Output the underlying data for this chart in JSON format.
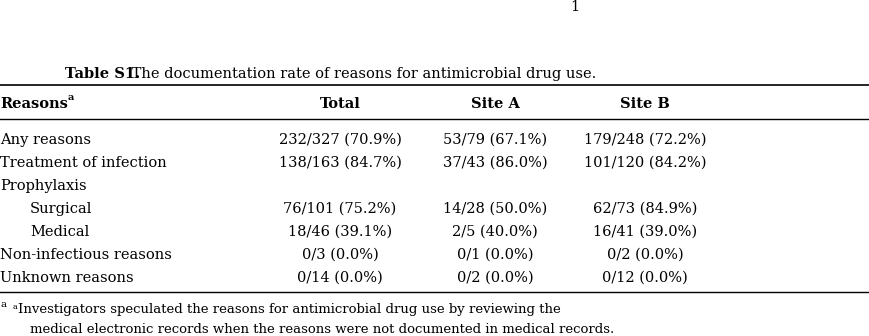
{
  "page_number": "1",
  "title_bold": "Table S1.",
  "title_regular": " The documentation rate of reasons for antimicrobial drug use.",
  "col_headers": [
    "Reasonsᵃ",
    "Total",
    "Site A",
    "Site B"
  ],
  "rows": [
    [
      "Any reasons",
      "232/327 (70.9%)",
      "53/79 (67.1%)",
      "179/248 (72.2%)"
    ],
    [
      "Treatment of infection",
      "138/163 (84.7%)",
      "37/43 (86.0%)",
      "101/120 (84.2%)"
    ],
    [
      "Prophylaxis",
      "",
      "",
      ""
    ],
    [
      "    Surgical",
      "76/101 (75.2%)",
      "14/28 (50.0%)",
      "62/73 (84.9%)"
    ],
    [
      "    Medical",
      "18/46 (39.1%)",
      "2/5 (40.0%)",
      "16/41 (39.0%)"
    ],
    [
      "Non-infectious reasons",
      "0/3 (0.0%)",
      "0/1 (0.0%)",
      "0/2 (0.0%)"
    ],
    [
      "Unknown reasons",
      "0/14 (0.0%)",
      "0/2 (0.0%)",
      "0/12 (0.0%)"
    ]
  ],
  "footnote_lines": [
    "ᵃInvestigators speculated the reasons for antimicrobial drug use by reviewing the",
    "medical electronic records when the reasons were not documented in medical records."
  ],
  "background_color": "#ffffff",
  "text_color": "#000000",
  "font_size": 10.5,
  "title_font_size": 10.5,
  "footnote_font_size": 9.5
}
